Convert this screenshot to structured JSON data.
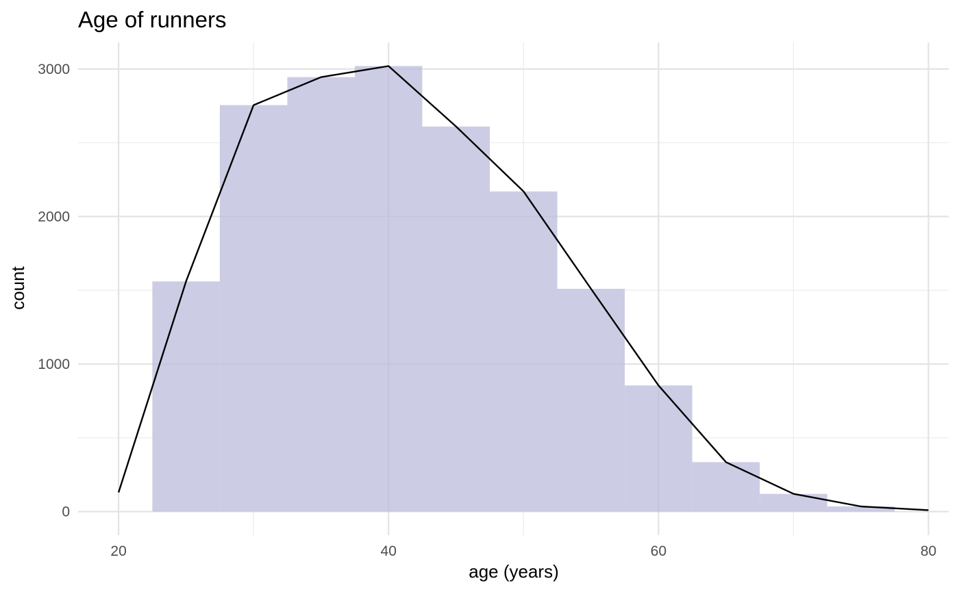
{
  "chart_data": {
    "type": "bar",
    "title": "Age of runners",
    "xlabel": "age (years)",
    "ylabel": "count",
    "xlim": [
      17,
      81.5
    ],
    "ylim": [
      -160,
      3180
    ],
    "x_ticks": [
      20,
      40,
      60,
      80
    ],
    "y_ticks": [
      0,
      1000,
      2000,
      3000
    ],
    "grid": true,
    "legend": "none",
    "histogram": {
      "bin_width": 5,
      "fill_color": "#cccce4",
      "bins": [
        {
          "center": 25,
          "count": 1560
        },
        {
          "center": 30,
          "count": 2755
        },
        {
          "center": 35,
          "count": 2945
        },
        {
          "center": 40,
          "count": 3020
        },
        {
          "center": 45,
          "count": 2610
        },
        {
          "center": 50,
          "count": 2170
        },
        {
          "center": 55,
          "count": 1510
        },
        {
          "center": 60,
          "count": 855
        },
        {
          "center": 65,
          "count": 335
        },
        {
          "center": 70,
          "count": 120
        },
        {
          "center": 75,
          "count": 35
        }
      ]
    },
    "line": {
      "color": "#000000",
      "points": [
        {
          "x": 20,
          "y": 130
        },
        {
          "x": 25,
          "y": 1560
        },
        {
          "x": 30,
          "y": 2755
        },
        {
          "x": 35,
          "y": 2945
        },
        {
          "x": 40,
          "y": 3020
        },
        {
          "x": 45,
          "y": 2610
        },
        {
          "x": 50,
          "y": 2170
        },
        {
          "x": 55,
          "y": 1510
        },
        {
          "x": 60,
          "y": 855
        },
        {
          "x": 65,
          "y": 335
        },
        {
          "x": 70,
          "y": 120
        },
        {
          "x": 75,
          "y": 35
        },
        {
          "x": 80,
          "y": 10
        }
      ]
    }
  }
}
